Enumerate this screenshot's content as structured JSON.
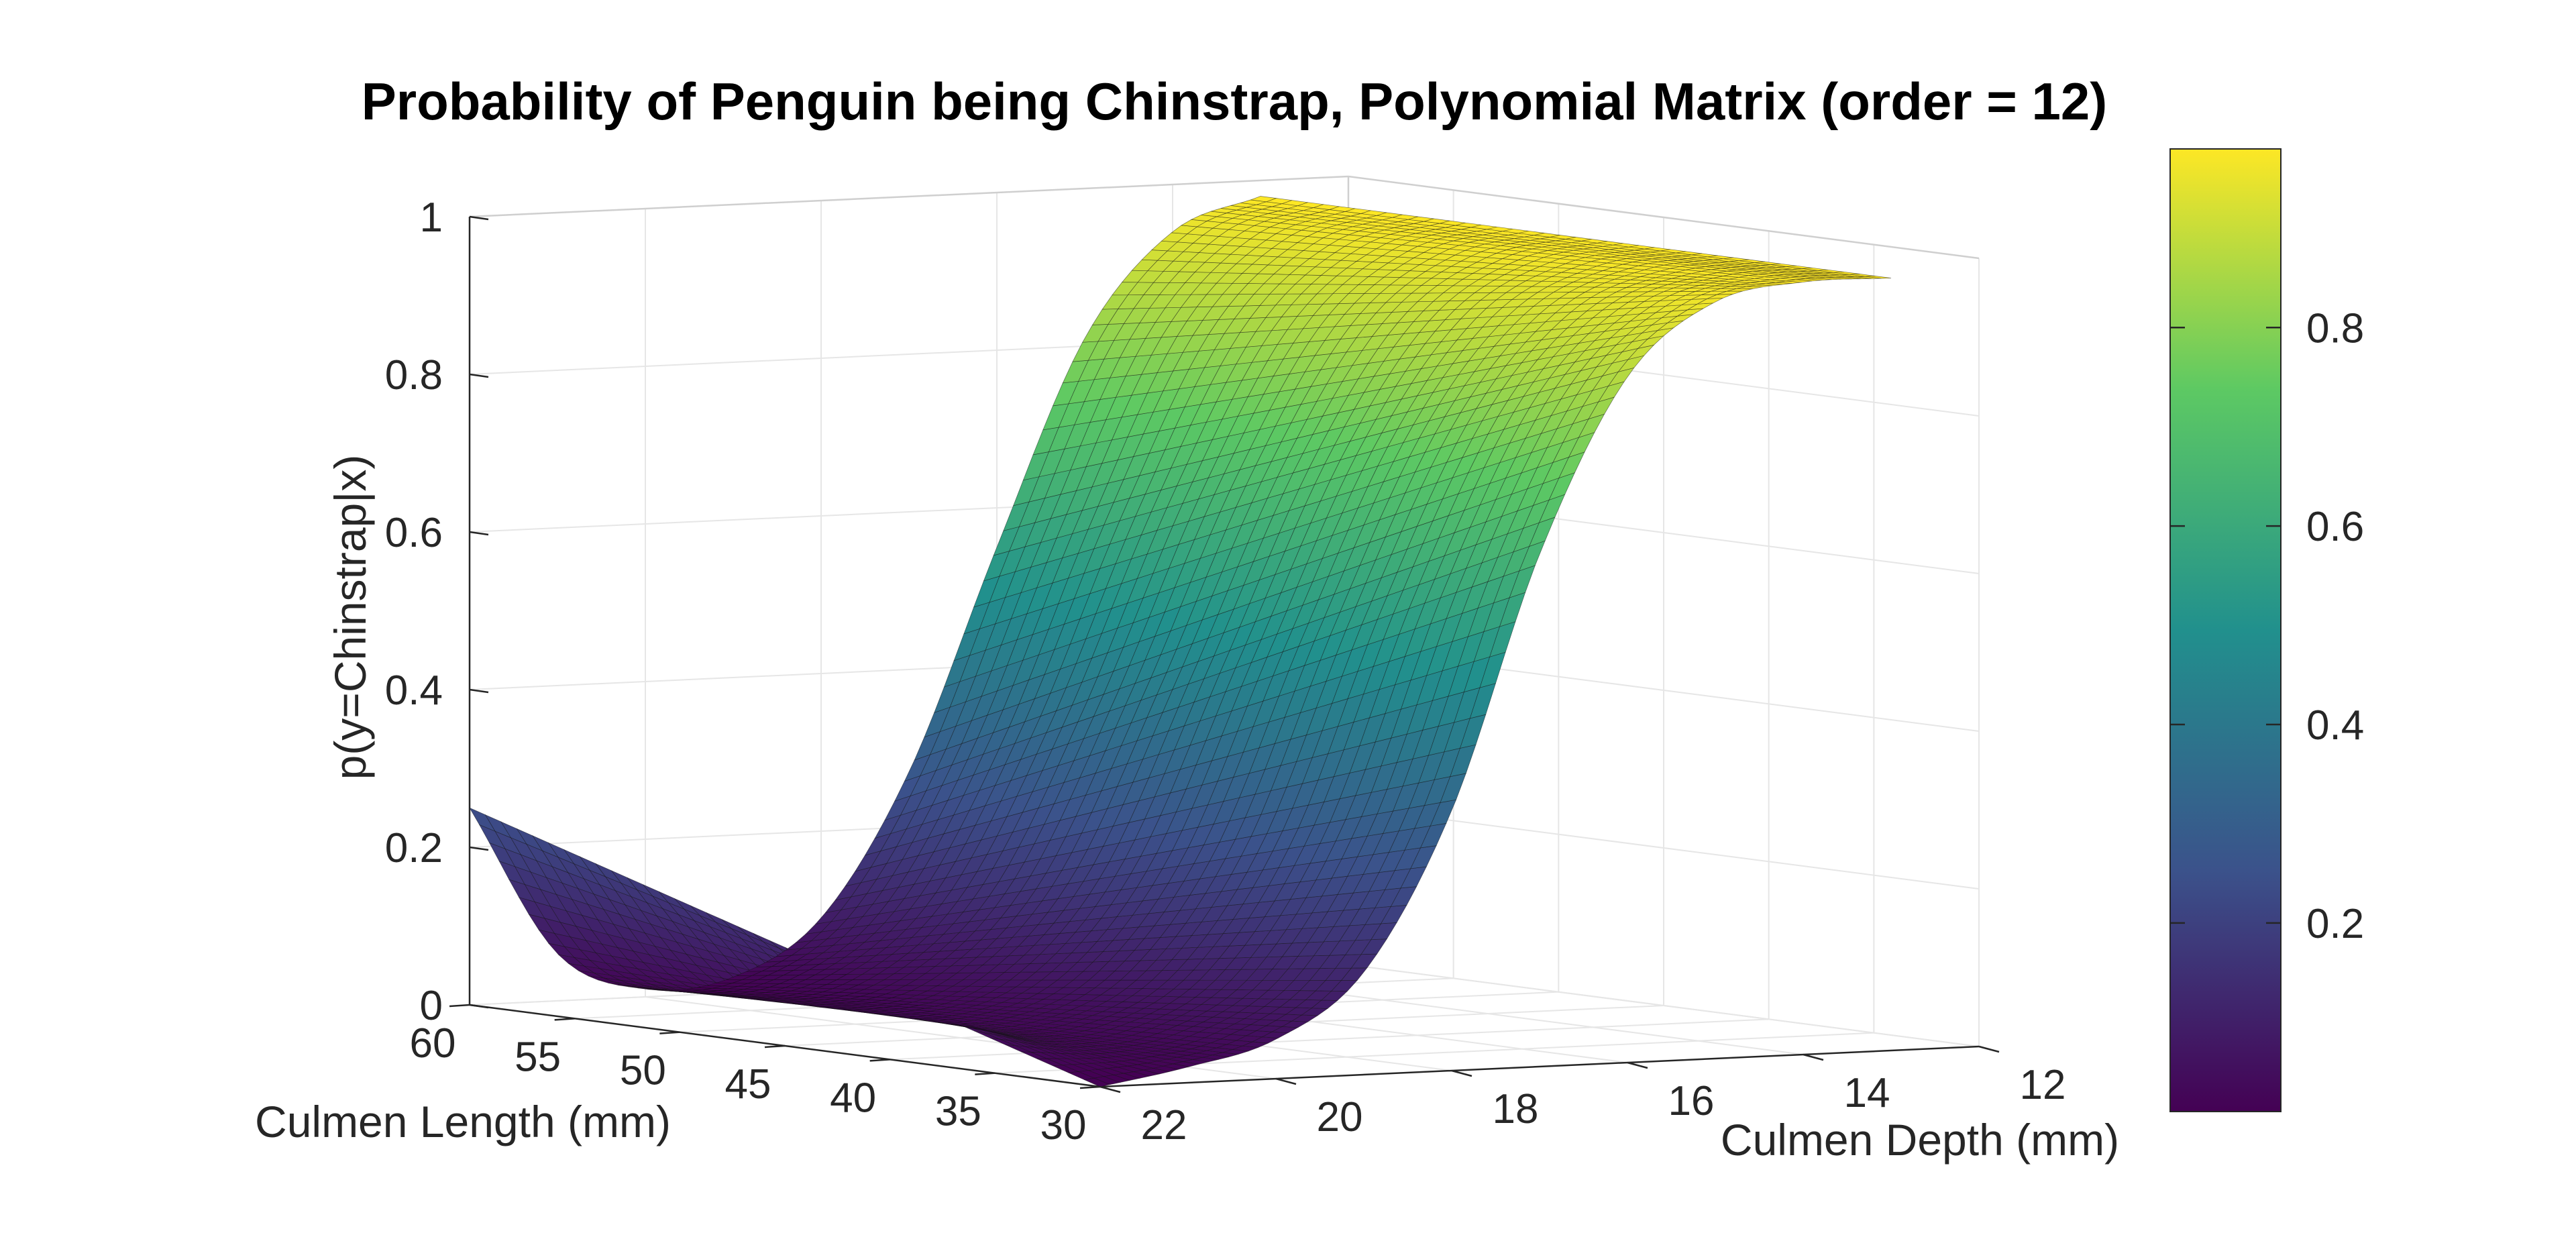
{
  "chart_data": {
    "type": "surface",
    "title": "Probability of Penguin being Chinstrap, Polynomial Matrix (order = 12)",
    "xlabel": "Culmen Length (mm)",
    "ylabel": "Culmen Depth (mm)",
    "zlabel": "p(y=Chinstrap|x)",
    "x_ticks": [
      "30",
      "35",
      "40",
      "45",
      "50",
      "55",
      "60"
    ],
    "y_ticks": [
      "12",
      "14",
      "16",
      "18",
      "20",
      "22"
    ],
    "z_ticks": [
      "0",
      "0.2",
      "0.4",
      "0.6",
      "0.8",
      "1"
    ],
    "colorbar_ticks": [
      "0.2",
      "0.4",
      "0.6",
      "0.8"
    ],
    "xlim": [
      30,
      60
    ],
    "ylim": [
      12,
      22
    ],
    "zlim": [
      0,
      1
    ],
    "colorbar_range": [
      0.01,
      0.98
    ],
    "colormap": "viridis",
    "grid": true,
    "surface_profile_along_depth": {
      "depth": [
        22,
        21,
        20,
        19,
        18,
        17,
        16,
        15,
        14,
        13
      ],
      "p_at_length_30": [
        0.0,
        0.02,
        0.05,
        0.13,
        0.33,
        0.65,
        0.87,
        0.96,
        0.98,
        0.98
      ],
      "p_at_length_60": [
        0.25,
        0.06,
        0.01,
        0.02,
        0.09,
        0.27,
        0.55,
        0.81,
        0.94,
        0.98
      ]
    },
    "colorbar_colors": [
      "#440154",
      "#3b528b",
      "#21908d",
      "#5dc963",
      "#fde725"
    ]
  }
}
